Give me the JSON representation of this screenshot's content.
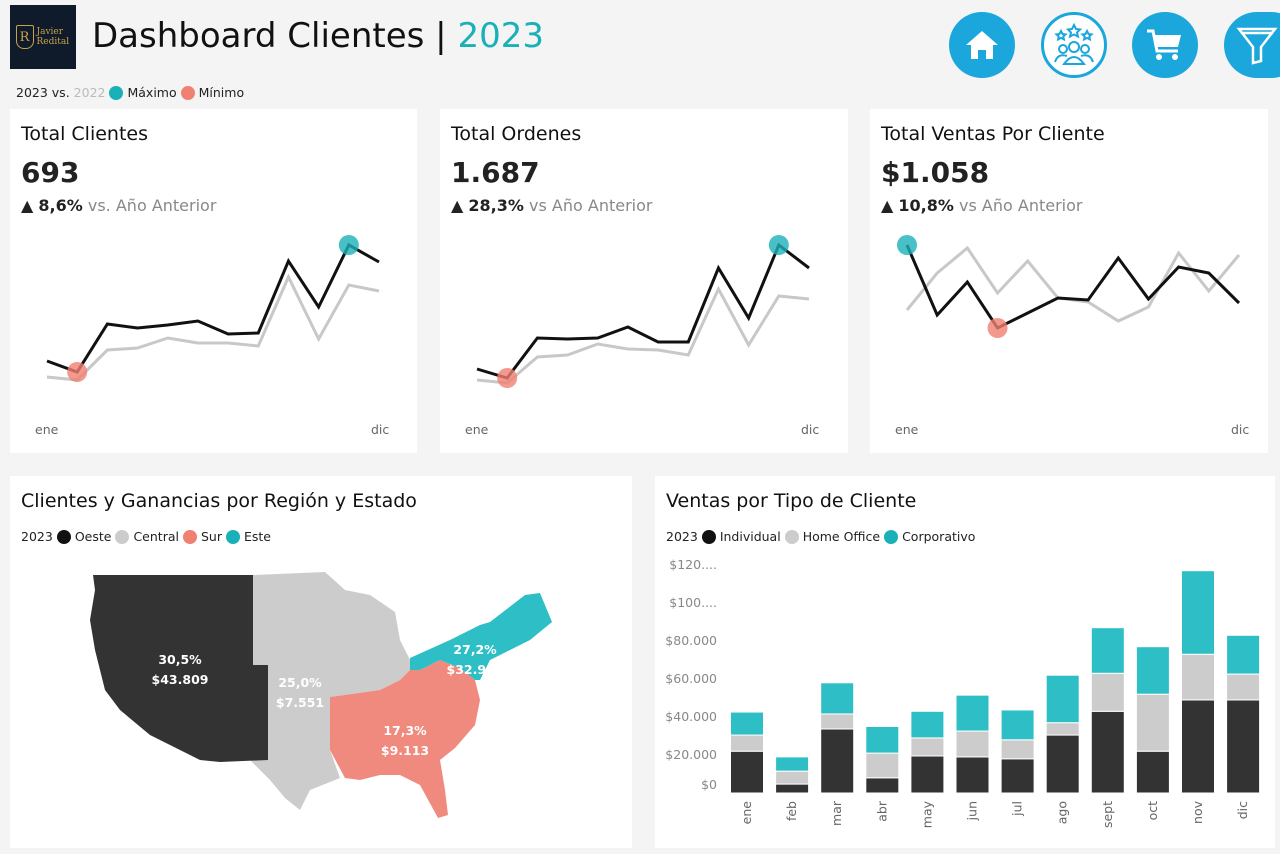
{
  "header": {
    "logo_text": "Javier Redital",
    "logo_letter": "R",
    "title": "Dashboard Clientes",
    "separator": "|",
    "year": "2023"
  },
  "legend_top": {
    "current": "2023 vs.",
    "previous": "2022",
    "max_label": "Máximo",
    "min_label": "Mínimo"
  },
  "colors": {
    "accent": "#1ab0b8",
    "nav": "#1ba6dc",
    "max": "#1ab0b8",
    "min": "#f08072",
    "current_line": "#111111",
    "previous_line": "#c8c8c8",
    "oeste": "#333333",
    "central": "#cccccc",
    "sur": "#f08a7e",
    "este": "#2ebfc6"
  },
  "nav": [
    {
      "icon": "home-icon"
    },
    {
      "icon": "customers-stars-icon"
    },
    {
      "icon": "cart-icon"
    },
    {
      "icon": "filter-funnel-icon"
    }
  ],
  "kpis": [
    {
      "title": "Total Clientes",
      "value": "693",
      "delta": "8,6%",
      "delta_text": "vs. Año Anterior",
      "axis_start": "ene",
      "axis_end": "dic",
      "current": [
        39,
        28,
        76,
        72,
        75,
        79,
        66,
        67,
        139,
        93,
        155,
        138
      ],
      "previous": [
        23,
        20,
        50,
        52,
        62,
        57,
        57,
        54,
        123,
        61,
        115,
        109
      ],
      "max_index": 10,
      "min_index": 1
    },
    {
      "title": "Total Ordenes",
      "value": "1.687",
      "delta": "28,3%",
      "delta_text": "vs Año Anterior",
      "axis_start": "ene",
      "axis_end": "dic",
      "current": [
        31,
        22,
        62,
        61,
        62,
        73,
        58,
        58,
        132,
        82,
        155,
        132
      ],
      "previous": [
        20,
        17,
        43,
        45,
        56,
        51,
        50,
        45,
        111,
        55,
        104,
        101
      ],
      "max_index": 10,
      "min_index": 1
    },
    {
      "title": "Total Ventas Por Cliente",
      "value": "$1.058",
      "delta": "10,8%",
      "delta_text": "vs Año Anterior",
      "axis_start": "ene",
      "axis_end": "dic",
      "current": [
        155,
        85,
        118,
        72,
        87,
        102,
        100,
        142,
        101,
        133,
        127,
        97
      ],
      "previous": [
        90,
        127,
        152,
        107,
        139,
        102,
        98,
        79,
        93,
        147,
        109,
        145
      ],
      "max_index": 0,
      "min_index": 3
    }
  ],
  "map": {
    "title": "Clientes y Ganancias por Región y Estado",
    "legend_year": "2023",
    "regions": [
      {
        "name": "Oeste",
        "pct": "30,5%",
        "profit": "$43.809"
      },
      {
        "name": "Central",
        "pct": "25,0%",
        "profit": "$7.551"
      },
      {
        "name": "Sur",
        "pct": "17,3%",
        "profit": "$9.113"
      },
      {
        "name": "Este",
        "pct": "27,2%",
        "profit": "$32.967"
      }
    ]
  },
  "bars": {
    "title": "Ventas por Tipo de Cliente",
    "legend_year": "2023"
  },
  "chart_data": {
    "type": "bar",
    "stacked": true,
    "categories": [
      "ene",
      "feb",
      "mar",
      "abr",
      "may",
      "jun",
      "jul",
      "ago",
      "sept",
      "oct",
      "nov",
      "dic"
    ],
    "series": [
      {
        "name": "Individual",
        "values": [
          22000,
          4700,
          33700,
          8000,
          19500,
          19000,
          18000,
          30500,
          43000,
          22000,
          49000,
          49000
        ]
      },
      {
        "name": "Home Office",
        "values": [
          8500,
          6800,
          7900,
          13000,
          9500,
          13600,
          10000,
          6500,
          20000,
          30000,
          24000,
          13600
        ]
      },
      {
        "name": "Corporativo",
        "values": [
          12100,
          7500,
          16400,
          14000,
          14000,
          18900,
          15700,
          25000,
          24000,
          25000,
          44000,
          20400
        ]
      }
    ],
    "yticks": [
      "$0",
      "$20.000",
      "$40.000",
      "$60.000",
      "$80.000",
      "$100....",
      "$120...."
    ],
    "ylim": [
      0,
      120000
    ],
    "grid": false,
    "legend": "top-left"
  }
}
